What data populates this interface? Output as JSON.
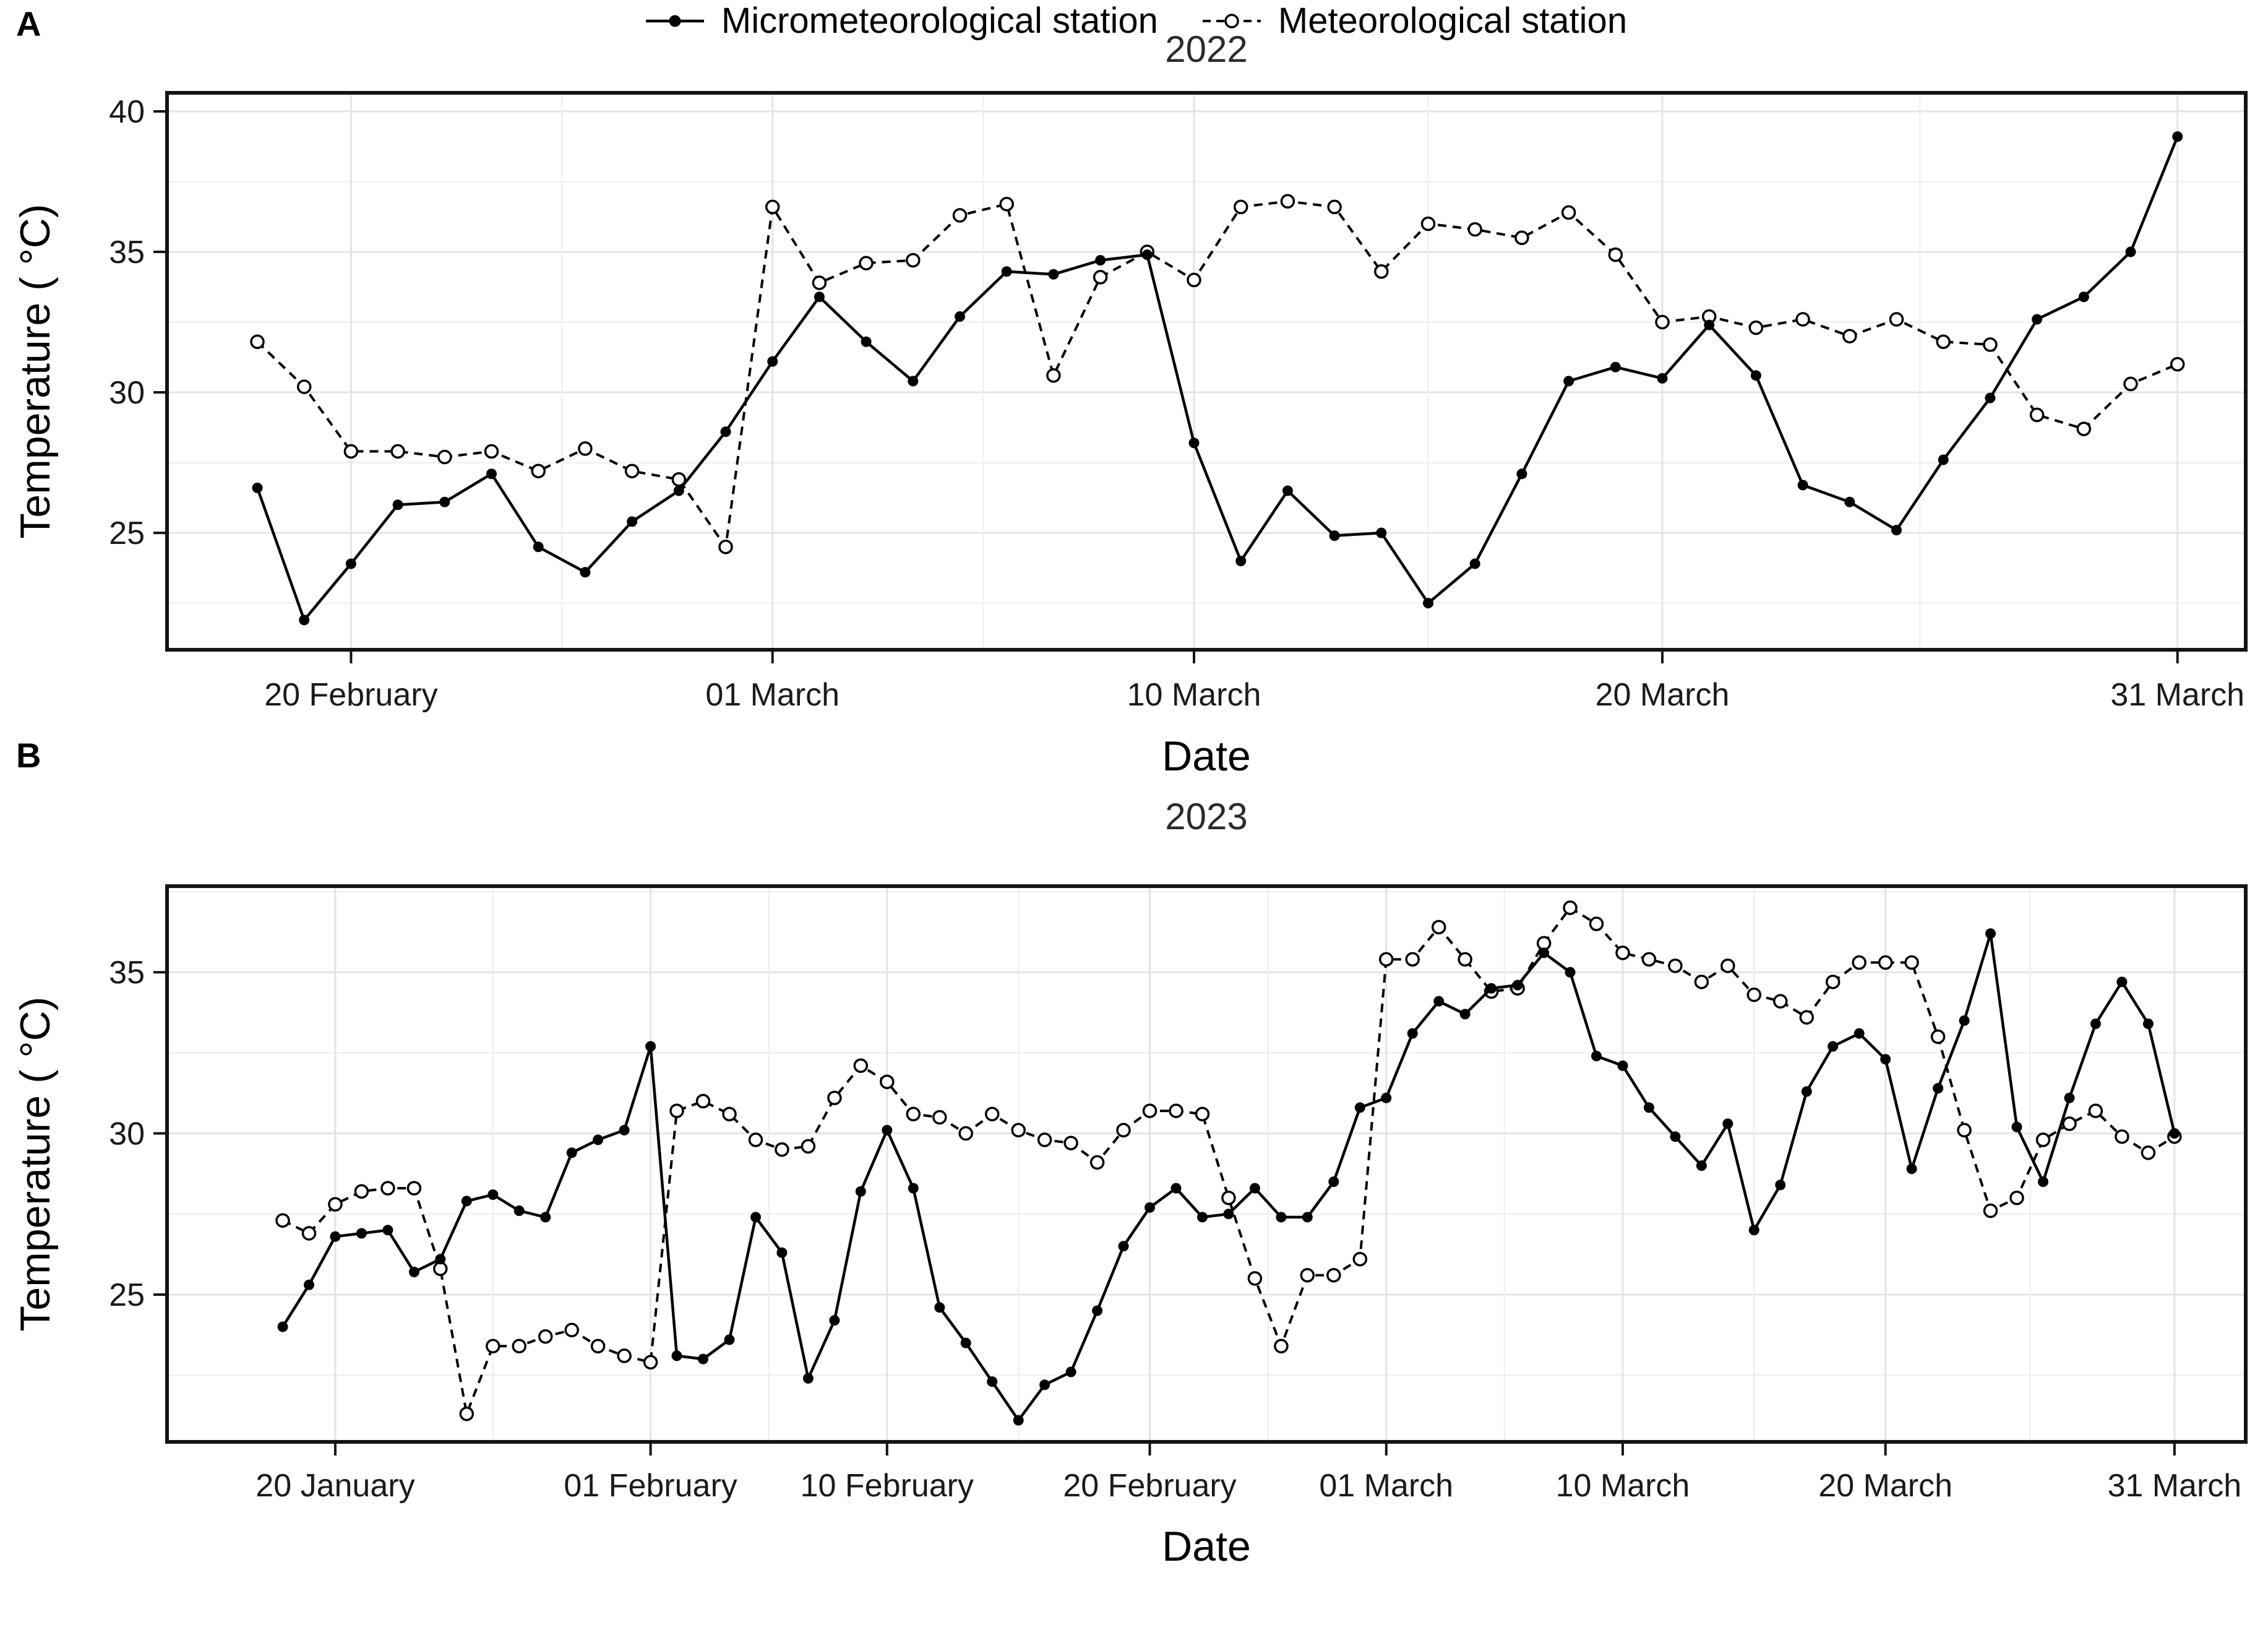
{
  "page": {
    "panel_a_label": "A",
    "panel_b_label": "B"
  },
  "legend": {
    "items": [
      {
        "label": "Micrometeorological station",
        "marker": "solid-line-filled-dot"
      },
      {
        "label": "Meteorological station",
        "marker": "dashed-line-open-dot"
      }
    ]
  },
  "chart_data": [
    {
      "type": "line",
      "panel": "A",
      "title": "2022",
      "xlabel": "Date",
      "ylabel": "Temperature ( °C)",
      "x_start_date": "18 February 2022",
      "x_end_date": "31 March 2022",
      "x_tick_labels": [
        "20 February",
        "01 March",
        "10 March",
        "20 March",
        "31 March"
      ],
      "x_tick_idx": [
        2,
        11,
        20,
        30,
        41
      ],
      "y_tick_labels": [
        "40",
        "35",
        "30",
        "25"
      ],
      "y_ticks": [
        40,
        35,
        30,
        25
      ],
      "y_minor_ticks": [
        37.5,
        32.5,
        27.5,
        22.5
      ],
      "ylim": [
        20.84,
        40.66
      ],
      "grid": true,
      "legend_position": "bottom",
      "series": [
        {
          "name": "Micrometeorological station",
          "line": "solid",
          "marker": "filled-circle",
          "values": [
            26.6,
            21.9,
            23.9,
            26.0,
            26.1,
            27.1,
            24.5,
            23.6,
            25.4,
            26.5,
            28.6,
            31.1,
            33.4,
            31.8,
            30.4,
            32.7,
            34.3,
            34.2,
            34.7,
            34.9,
            28.2,
            24.0,
            26.5,
            24.9,
            25.0,
            22.5,
            23.9,
            27.1,
            30.4,
            30.9,
            30.5,
            32.4,
            30.6,
            26.7,
            26.1,
            25.1,
            27.6,
            29.8,
            32.6,
            33.4,
            35.0,
            39.1
          ]
        },
        {
          "name": "Meteorological station",
          "line": "dashed",
          "marker": "open-circle",
          "values": [
            31.8,
            30.2,
            27.9,
            27.9,
            27.7,
            27.9,
            27.2,
            28.0,
            27.2,
            26.9,
            24.5,
            36.6,
            33.9,
            34.6,
            34.7,
            36.3,
            36.7,
            30.6,
            34.1,
            35.0,
            34.0,
            36.6,
            36.8,
            36.6,
            34.3,
            36.0,
            35.8,
            35.5,
            36.4,
            34.9,
            32.5,
            32.7,
            32.3,
            32.6,
            32.0,
            32.6,
            31.8,
            31.7,
            29.2,
            28.7,
            30.3,
            31.0
          ]
        }
      ]
    },
    {
      "type": "line",
      "panel": "B",
      "title": "2023",
      "xlabel": "Date",
      "ylabel": "Temperature ( °C)",
      "x_start_date": "18 January 2023",
      "x_end_date": "31 March 2023",
      "x_tick_labels": [
        "20 January",
        "01 February",
        "10 February",
        "20 February",
        "01 March",
        "10 March",
        "20 March",
        "31 March"
      ],
      "x_tick_idx": [
        2,
        14,
        23,
        33,
        42,
        51,
        61,
        72
      ],
      "y_tick_labels": [
        "35",
        "30",
        "25"
      ],
      "y_ticks": [
        35,
        30,
        25
      ],
      "y_minor_ticks": [
        37.5,
        32.5,
        27.5,
        22.5
      ],
      "ylim": [
        20.43,
        37.67
      ],
      "grid": true,
      "legend_position": "bottom",
      "series": [
        {
          "name": "Micrometeorological station",
          "line": "solid",
          "marker": "filled-circle",
          "values": [
            24.0,
            25.3,
            26.8,
            26.9,
            27.0,
            25.7,
            26.1,
            27.9,
            28.1,
            27.6,
            27.4,
            29.4,
            29.8,
            30.1,
            32.7,
            23.1,
            23.0,
            23.6,
            27.4,
            26.3,
            22.4,
            24.2,
            28.2,
            30.1,
            28.3,
            24.6,
            23.5,
            22.3,
            21.1,
            22.2,
            22.6,
            24.5,
            26.5,
            27.7,
            28.3,
            27.4,
            27.5,
            28.3,
            27.4,
            27.4,
            28.5,
            30.8,
            31.1,
            33.1,
            34.1,
            33.7,
            34.5,
            34.6,
            35.6,
            35.0,
            32.4,
            32.1,
            30.8,
            29.9,
            29.0,
            30.3,
            27.0,
            28.4,
            31.3,
            32.7,
            33.1,
            32.3,
            28.9,
            31.4,
            33.5,
            36.2,
            30.2,
            28.5,
            31.1,
            33.4,
            34.7,
            33.4,
            30.0
          ]
        },
        {
          "name": "Meteorological station",
          "line": "dashed",
          "marker": "open-circle",
          "values": [
            27.3,
            26.9,
            27.8,
            28.2,
            28.3,
            28.3,
            25.8,
            21.3,
            23.4,
            23.4,
            23.7,
            23.9,
            23.4,
            23.1,
            22.9,
            30.7,
            31.0,
            30.6,
            29.8,
            29.5,
            29.6,
            31.1,
            32.1,
            31.6,
            30.6,
            30.5,
            30.0,
            30.6,
            30.1,
            29.8,
            29.7,
            29.1,
            30.1,
            30.7,
            30.7,
            30.6,
            28.0,
            25.5,
            23.4,
            25.6,
            25.6,
            26.1,
            35.4,
            35.4,
            36.4,
            35.4,
            34.4,
            34.5,
            35.9,
            37.0,
            36.5,
            35.6,
            35.4,
            35.2,
            34.7,
            35.2,
            34.3,
            34.1,
            33.6,
            34.7,
            35.3,
            35.3,
            35.3,
            33.0,
            30.1,
            27.6,
            28.0,
            29.8,
            30.3,
            30.7,
            29.9,
            29.4,
            29.9
          ]
        }
      ]
    }
  ]
}
